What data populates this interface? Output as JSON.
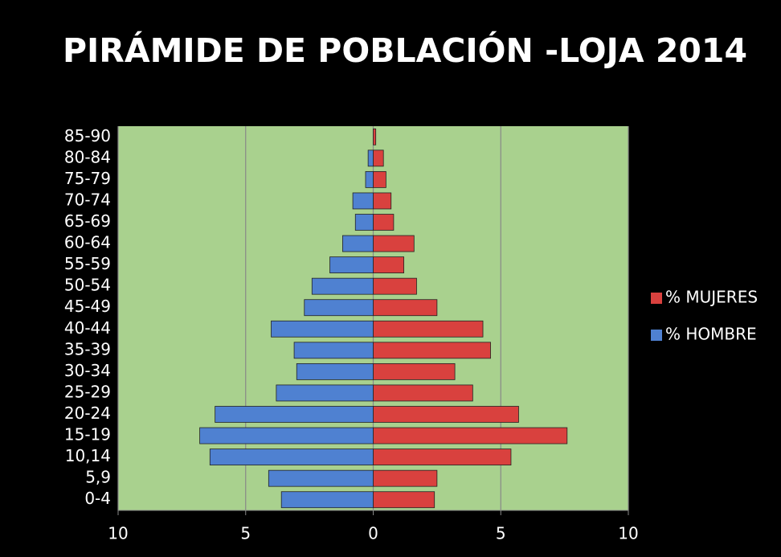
{
  "chart_data": {
    "type": "bar",
    "orientation": "horizontal",
    "stacked": false,
    "title": "PIRÁMIDE DE POBLACIÓN -LOJA 2014",
    "categories": [
      "0-4",
      "5,9",
      "10,14",
      "15-19",
      "20-24",
      "25-29",
      "30-34",
      "35-39",
      "40-44",
      "45-49",
      "50-54",
      "55-59",
      "60-64",
      "65-69",
      "70-74",
      "75-79",
      "80-84",
      "85-90"
    ],
    "series": [
      {
        "name": "% MUJERES",
        "color": "#d9413e",
        "values": [
          2.4,
          2.5,
          5.4,
          7.6,
          5.7,
          3.9,
          3.2,
          4.6,
          4.3,
          2.5,
          1.7,
          1.2,
          1.6,
          0.8,
          0.7,
          0.5,
          0.4,
          0.1
        ]
      },
      {
        "name": "% HOMBRE",
        "color": "#4f81d1",
        "values": [
          -3.6,
          -4.1,
          -6.4,
          -6.8,
          -6.2,
          -3.8,
          -3.0,
          -3.1,
          -4.0,
          -2.7,
          -2.4,
          -1.7,
          -1.2,
          -0.7,
          -0.8,
          -0.3,
          -0.2,
          0
        ]
      }
    ],
    "xlim": [
      -10,
      10
    ],
    "xticks": [
      {
        "value": -10,
        "label": "10"
      },
      {
        "value": -5,
        "label": "5"
      },
      0,
      5,
      10
    ],
    "grid": true,
    "legend": "right"
  }
}
